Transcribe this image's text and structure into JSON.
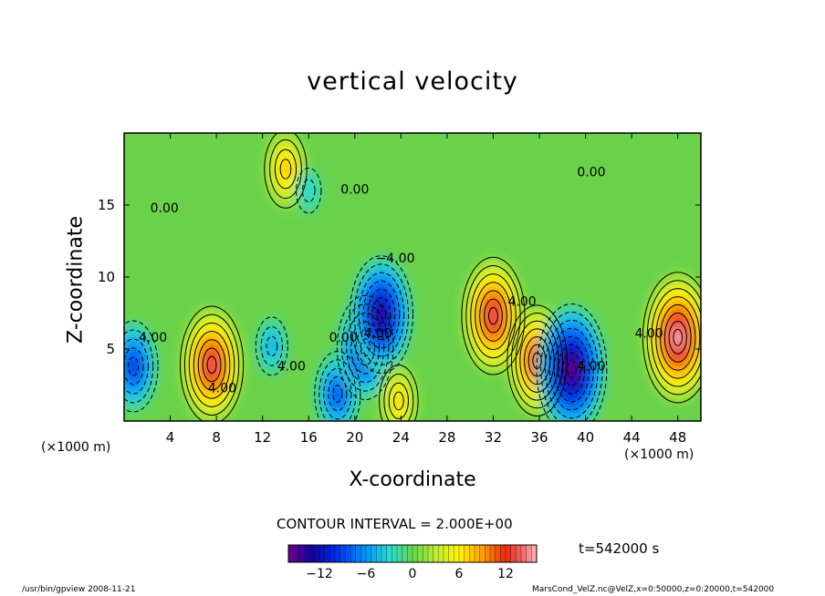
{
  "chart_data": {
    "type": "heatmap",
    "title": "vertical velocity",
    "xlabel": "X-coordinate",
    "ylabel": "Z-coordinate",
    "x_unit": "(×1000 m)",
    "xlim": [
      0,
      50
    ],
    "ylim": [
      0,
      20
    ],
    "x_ticks": [
      4,
      8,
      12,
      16,
      20,
      24,
      28,
      32,
      36,
      40,
      44,
      48
    ],
    "y_ticks": [
      5,
      10,
      15
    ],
    "contour_interval": "CONTOUR INTERVAL = 2.000E+00",
    "colorbar": {
      "range": [
        -16,
        16
      ],
      "ticks": [
        -12,
        -6,
        0,
        6,
        12
      ],
      "tick_labels": [
        "−12",
        "−6",
        "0",
        "6",
        "12"
      ]
    },
    "contour_labels": [
      "0.00",
      "4.00",
      "−4.00"
    ],
    "time": "t=542000 s",
    "features": [
      {
        "x": 0.8,
        "z": 3.8,
        "value": -10
      },
      {
        "x": 7.6,
        "z": 3.9,
        "value": 14
      },
      {
        "x": 12.8,
        "z": 5.2,
        "value": -5
      },
      {
        "x": 18.5,
        "z": 1.9,
        "value": -9
      },
      {
        "x": 20.9,
        "z": 5.1,
        "value": -12
      },
      {
        "x": 22.3,
        "z": 7.4,
        "value": -14
      },
      {
        "x": 23.8,
        "z": 1.4,
        "value": 7
      },
      {
        "x": 32.0,
        "z": 7.3,
        "value": 14
      },
      {
        "x": 35.8,
        "z": 4.2,
        "value": 13
      },
      {
        "x": 38.8,
        "z": 3.6,
        "value": -16
      },
      {
        "x": 48.0,
        "z": 5.8,
        "value": 16
      },
      {
        "x": 14.0,
        "z": 17.5,
        "value": 8
      },
      {
        "x": 16.0,
        "z": 16.0,
        "value": -3
      }
    ]
  },
  "footer": {
    "left": "/usr/bin/gpview   2008-11-21",
    "right": "MarsCond_VelZ.nc@VelZ,x=0:50000,z=0:20000,t=542000"
  }
}
